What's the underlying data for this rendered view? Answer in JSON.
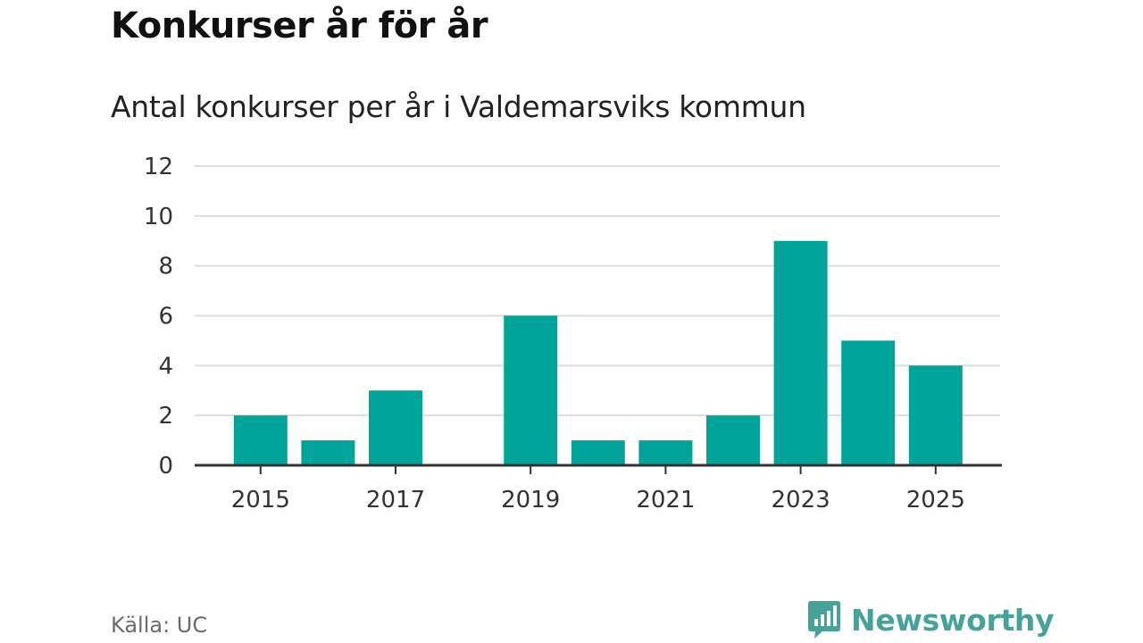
{
  "header": {
    "title": "Konkurser år för år",
    "subtitle": "Antal konkurser per år i Valdemarsviks kommun"
  },
  "footer": {
    "source": "Källa: UC",
    "brand": "Newsworthy"
  },
  "colors": {
    "bar": "#00a499",
    "grid": "#dddddd",
    "axis": "#333333",
    "brand": "#45a39a"
  },
  "icons": {
    "brand_logo": "newsworthy-logo-icon"
  },
  "chart_data": {
    "type": "bar",
    "title": "Konkurser år för år",
    "subtitle": "Antal konkurser per år i Valdemarsviks kommun",
    "xlabel": "",
    "ylabel": "",
    "x": [
      2015,
      2016,
      2017,
      2018,
      2019,
      2020,
      2021,
      2022,
      2023,
      2024,
      2025
    ],
    "values": [
      2,
      1,
      3,
      0,
      6,
      1,
      1,
      2,
      9,
      5,
      4
    ],
    "ylim": [
      0,
      12
    ],
    "yticks": [
      0,
      2,
      4,
      6,
      8,
      10,
      12
    ],
    "xticks": [
      2015,
      2017,
      2019,
      2021,
      2023,
      2025
    ],
    "grid": true,
    "legend": "none"
  }
}
